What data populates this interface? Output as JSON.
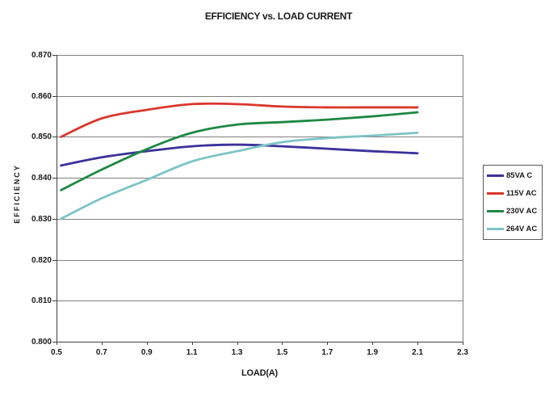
{
  "title": "EFFICIENCY vs. LOAD CURRENT",
  "colors": {
    "gridline": "#7f7f7f",
    "axis": "#404040",
    "plot_border": "#7f7f7f",
    "text": "#1a1a1a",
    "legend_border": "#595959",
    "background": "#ffffff"
  },
  "chart_data": {
    "type": "line",
    "title": "EFFICIENCY vs. LOAD CURRENT",
    "xlabel": "LOAD(A)",
    "ylabel": "EFFICIENCY",
    "xlim": [
      0.5,
      2.3
    ],
    "ylim": [
      0.8,
      0.87
    ],
    "grid": "horizontal",
    "legend_position": "right",
    "line_style": "smooth",
    "x_ticks": [
      "0.5",
      "0.7",
      "0.9",
      "1.1",
      "1.3",
      "1.5",
      "1.7",
      "1.9",
      "2.1",
      "2.3"
    ],
    "y_ticks": [
      "0.870",
      "0.860",
      "0.850",
      "0.840",
      "0.830",
      "0.820",
      "0.810",
      "0.800"
    ],
    "x": [
      0.52,
      0.7,
      0.9,
      1.1,
      1.3,
      1.5,
      1.7,
      1.9,
      2.1
    ],
    "series": [
      {
        "name": "85VA C",
        "color": "#3B3199",
        "values": [
          0.843,
          0.845,
          0.8465,
          0.8477,
          0.8481,
          0.8477,
          0.8471,
          0.8465,
          0.846
        ]
      },
      {
        "name": "115V AC",
        "color": "#D9382C",
        "values": [
          0.85,
          0.8545,
          0.8566,
          0.858,
          0.858,
          0.8574,
          0.8572,
          0.8572,
          0.8572
        ]
      },
      {
        "name": "230V AC",
        "color": "#1E8843",
        "values": [
          0.837,
          0.842,
          0.847,
          0.851,
          0.853,
          0.8536,
          0.8542,
          0.855,
          0.856
        ]
      },
      {
        "name": "264V AC",
        "color": "#7EC4C6",
        "values": [
          0.83,
          0.835,
          0.8395,
          0.844,
          0.8465,
          0.8487,
          0.8497,
          0.8503,
          0.851
        ]
      }
    ]
  }
}
